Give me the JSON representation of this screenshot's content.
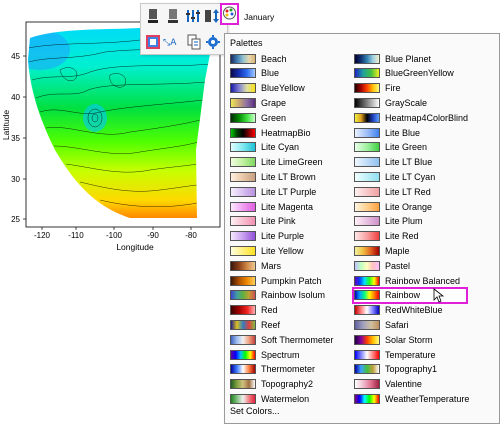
{
  "plot": {
    "x_axis_title": "Longitude",
    "y_axis_title": "Latitude",
    "x_ticks": [
      "-120",
      "-110",
      "-100",
      "-90",
      "-80"
    ],
    "y_ticks": [
      "45",
      "40",
      "35",
      "30",
      "25"
    ]
  },
  "toolbar": {
    "buttons": [
      "fill-color-icon",
      "line-color-icon",
      "levels-icon",
      "scale-icon",
      "palette-icon",
      "color-map-icon",
      "label-icon",
      "copy-format-icon",
      "settings-icon"
    ],
    "selected_label": "January"
  },
  "menu": {
    "header": "Palettes",
    "left_column": [
      {
        "label": "Beach",
        "colors": [
          "#1b2a5e",
          "#3e7ab0",
          "#8fc1cf",
          "#e7d9b0",
          "#d9b37a"
        ]
      },
      {
        "label": "Blue",
        "colors": [
          "#0a0a4a",
          "#1530b0",
          "#2d6cf0",
          "#a4c8ff"
        ]
      },
      {
        "label": "BlueYellow",
        "colors": [
          "#1a1aa8",
          "#7f7fd4",
          "#e0e0a0",
          "#f5e21a"
        ]
      },
      {
        "label": "Grape",
        "colors": [
          "#f0e65a",
          "#c8a66e",
          "#8a6ea4",
          "#5a2e7a"
        ]
      },
      {
        "label": "Green",
        "colors": [
          "#002a00",
          "#008a00",
          "#40e040",
          "#c8ffc8"
        ]
      },
      {
        "label": "HeatmapBio",
        "colors": [
          "#00c800",
          "#004000",
          "#000000",
          "#800000",
          "#ff0000"
        ]
      },
      {
        "label": "Lite Cyan",
        "colors": [
          "#e0ffff",
          "#80e8f0",
          "#20c0d8"
        ]
      },
      {
        "label": "Lite LimeGreen",
        "colors": [
          "#f0ffe0",
          "#c0f0a0",
          "#80d860"
        ]
      },
      {
        "label": "Lite LT Brown",
        "colors": [
          "#fff0e0",
          "#e8c8a8",
          "#c8a080"
        ]
      },
      {
        "label": "Lite LT Purple",
        "colors": [
          "#f8f0ff",
          "#d8c0f0",
          "#b890e0"
        ]
      },
      {
        "label": "Lite Magenta",
        "colors": [
          "#ffe8ff",
          "#f0a0f0",
          "#e060e0"
        ]
      },
      {
        "label": "Lite Pink",
        "colors": [
          "#fff0f4",
          "#f8c0d0",
          "#f090b0"
        ]
      },
      {
        "label": "Lite Purple",
        "colors": [
          "#f4e8ff",
          "#c8a0f0",
          "#9050d8"
        ]
      },
      {
        "label": "Lite Yellow",
        "colors": [
          "#ffffe0",
          "#fff080",
          "#ffe020"
        ]
      },
      {
        "label": "Mars",
        "colors": [
          "#3a1808",
          "#8a4018",
          "#d08848",
          "#f0c890"
        ]
      },
      {
        "label": "Pumpkin Patch",
        "colors": [
          "#3a1800",
          "#b05000",
          "#f08800",
          "#ffd060"
        ]
      },
      {
        "label": "Rainbow Isolum",
        "colors": [
          "#4040d0",
          "#40a0a0",
          "#60b040",
          "#c0a030",
          "#d05050"
        ]
      },
      {
        "label": "Red",
        "colors": [
          "#3a0000",
          "#a00000",
          "#f02020",
          "#ffb0b0"
        ]
      },
      {
        "label": "Reef",
        "colors": [
          "#20208a",
          "#e0c020",
          "#3080c0",
          "#e04040",
          "#80c040"
        ]
      },
      {
        "label": "Soft Thermometer",
        "colors": [
          "#4060c0",
          "#a0c0f0",
          "#f0f0f0",
          "#f0a080",
          "#c04040"
        ]
      },
      {
        "label": "Spectrum",
        "colors": [
          "#6000a0",
          "#0000ff",
          "#00c0ff",
          "#00ff00",
          "#ffff00",
          "#ff0000"
        ]
      },
      {
        "label": "Thermometer",
        "colors": [
          "#0000a0",
          "#4080ff",
          "#ffffff",
          "#ff8040",
          "#a00000"
        ]
      },
      {
        "label": "Topography2",
        "colors": [
          "#206020",
          "#80a040",
          "#d0c080",
          "#a07040",
          "#ffffff"
        ]
      },
      {
        "label": "Watermelon",
        "colors": [
          "#208020",
          "#80c080",
          "#f0f0f0",
          "#f08080",
          "#e02040"
        ]
      }
    ],
    "right_column": [
      {
        "label": "Blue Planet",
        "colors": [
          "#000030",
          "#103070",
          "#3080b0",
          "#a0d0e0",
          "#f0f0d0"
        ]
      },
      {
        "label": "BlueGreenYellow",
        "colors": [
          "#2020c0",
          "#20a0a0",
          "#40c040",
          "#f0f020"
        ]
      },
      {
        "label": "Fire",
        "colors": [
          "#200000",
          "#a00000",
          "#ff4000",
          "#ffc000",
          "#ffff80"
        ]
      },
      {
        "label": "GrayScale",
        "colors": [
          "#000000",
          "#808080",
          "#ffffff"
        ]
      },
      {
        "label": "Heatmap4ColorBlind",
        "colors": [
          "#f0f040",
          "#e0a020",
          "#000000",
          "#2040c0",
          "#60a0ff"
        ]
      },
      {
        "label": "Lite Blue",
        "colors": [
          "#e8f0ff",
          "#a0c0f8",
          "#4080f0"
        ]
      },
      {
        "label": "Lite Green",
        "colors": [
          "#e8ffe8",
          "#a0f0a0",
          "#40d040"
        ]
      },
      {
        "label": "Lite LT Blue",
        "colors": [
          "#f0f8ff",
          "#c0dcf8",
          "#90c0f0"
        ]
      },
      {
        "label": "Lite LT Cyan",
        "colors": [
          "#f0ffff",
          "#c0f0f8",
          "#90e0f0"
        ]
      },
      {
        "label": "Lite LT Red",
        "colors": [
          "#fff0f0",
          "#f8c8c8",
          "#f0a0a0"
        ]
      },
      {
        "label": "Lite Orange",
        "colors": [
          "#fff4e0",
          "#ffd090",
          "#ffa040"
        ]
      },
      {
        "label": "Lite Plum",
        "colors": [
          "#fff0f8",
          "#e8c0e0",
          "#d090c8"
        ]
      },
      {
        "label": "Lite Red",
        "colors": [
          "#ffe8e8",
          "#f8a0a0",
          "#f04040"
        ]
      },
      {
        "label": "Maple",
        "colors": [
          "#f0f0a0",
          "#f0c040",
          "#e06020",
          "#a00000"
        ]
      },
      {
        "label": "Pastel",
        "colors": [
          "#c0c0ff",
          "#c0ffc0",
          "#ffffc0",
          "#ffc0c0",
          "#ffc0ff"
        ]
      },
      {
        "label": "Rainbow Balanced",
        "colors": [
          "#6000c0",
          "#0040ff",
          "#00e0ff",
          "#20ff20",
          "#ffff00",
          "#ff0000"
        ]
      },
      {
        "label": "Rainbow",
        "colors": [
          "#0000c0",
          "#00a0ff",
          "#00ff80",
          "#ffff00",
          "#ff8000",
          "#ff0000"
        ]
      },
      {
        "label": "RedWhiteBlue",
        "colors": [
          "#c00000",
          "#ff8080",
          "#ffffff",
          "#8080ff",
          "#0000c0"
        ]
      },
      {
        "label": "Safari",
        "colors": [
          "#6060a0",
          "#a0a0c0",
          "#d0c0a0",
          "#c09060"
        ]
      },
      {
        "label": "Solar Storm",
        "colors": [
          "#200040",
          "#8000a0",
          "#ff4000",
          "#ffc000",
          "#ffff80"
        ]
      },
      {
        "label": "Temperature",
        "colors": [
          "#0000ff",
          "#8080ff",
          "#ffffff",
          "#ff8080",
          "#ff0000"
        ]
      },
      {
        "label": "Topography1",
        "colors": [
          "#0000a0",
          "#40a0ff",
          "#40c040",
          "#c0a040",
          "#ffffff"
        ]
      },
      {
        "label": "Valentine",
        "colors": [
          "#ffffff",
          "#f0c0d0",
          "#e07090",
          "#a02040"
        ]
      },
      {
        "label": "WeatherTemperature",
        "colors": [
          "#800080",
          "#0000ff",
          "#00ffff",
          "#00ff00",
          "#ffff00",
          "#ff0000"
        ]
      }
    ],
    "selected": "Rainbow",
    "footer": "Set Colors..."
  },
  "colors": {
    "highlight": "#e01fd9",
    "menu_bg": "#fafafa"
  }
}
